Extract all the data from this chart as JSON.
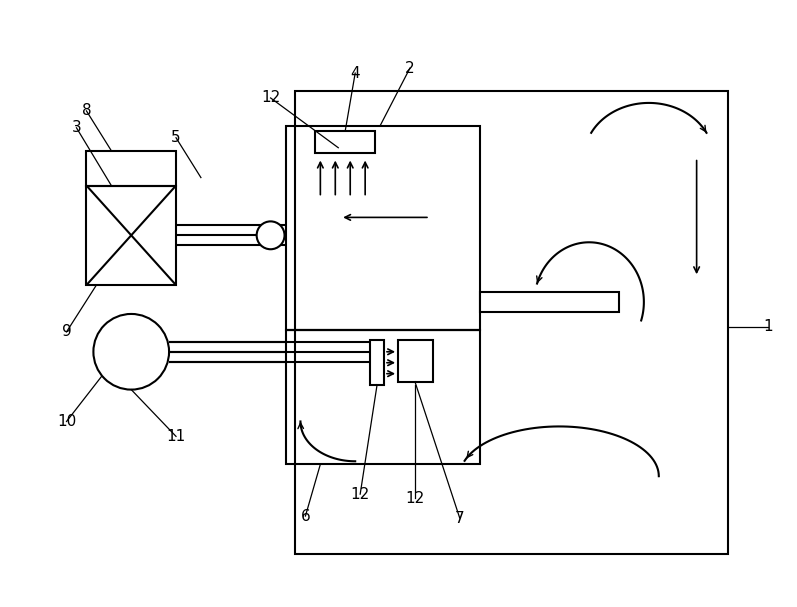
{
  "bg_color": "#ffffff",
  "line_color": "#000000",
  "lw": 1.5,
  "thin_lw": 0.9,
  "fig_width": 7.97,
  "fig_height": 6.07,
  "dpi": 100
}
